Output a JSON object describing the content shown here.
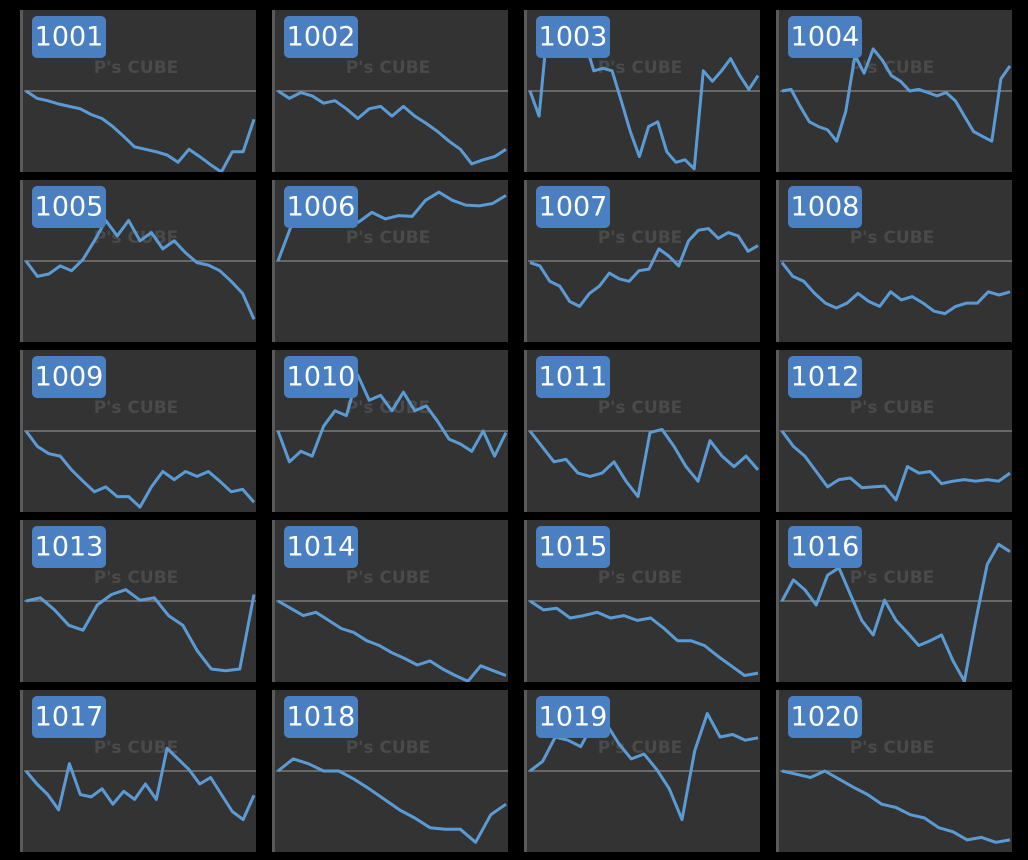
{
  "chart_data": [
    {
      "type": "line",
      "title": "1001",
      "watermark": "P's CUBE",
      "color": "#5b9bd5",
      "ylim": [
        -10,
        10
      ],
      "baseline": 0,
      "values": [
        0,
        -0.9,
        -1.2,
        -1.6,
        -1.9,
        -2.2,
        -2.9,
        -3.4,
        -4.4,
        -5.6,
        -6.9,
        -7.2,
        -7.5,
        -7.9,
        -8.8,
        -7.2,
        -8.1,
        -9.1,
        -10,
        -7.5,
        -7.5,
        -3.5
      ]
    },
    {
      "type": "line",
      "title": "1002",
      "watermark": "P's CUBE",
      "color": "#5b9bd5",
      "ylim": [
        -10,
        10
      ],
      "baseline": 0,
      "values": [
        0,
        -0.9,
        -0.2,
        -0.6,
        -1.5,
        -1.2,
        -2.2,
        -3.4,
        -2.2,
        -1.9,
        -3.1,
        -1.9,
        -3.1,
        -4,
        -5,
        -6.2,
        -7.2,
        -9,
        -8.5,
        -8.1,
        -7.2
      ]
    },
    {
      "type": "line",
      "title": "1003",
      "watermark": "P's CUBE",
      "color": "#5b9bd5",
      "ylim": [
        -10,
        10
      ],
      "baseline": 0,
      "values": [
        0,
        -3.1,
        8.8,
        5.6,
        6.2,
        5,
        6.2,
        2.5,
        2.8,
        2.5,
        -1.2,
        -5,
        -8.1,
        -4.4,
        -3.8,
        -7.5,
        -8.8,
        -8.5,
        -9.6,
        2.5,
        1.2,
        2.5,
        4,
        1.9,
        0.2,
        1.9
      ]
    },
    {
      "type": "line",
      "title": "1004",
      "watermark": "P's CUBE",
      "color": "#5b9bd5",
      "ylim": [
        -10,
        10
      ],
      "baseline": 0,
      "values": [
        0,
        0.2,
        -1.9,
        -3.8,
        -4.4,
        -4.8,
        -6.2,
        -2.5,
        4.4,
        2.2,
        5.2,
        3.8,
        1.9,
        1.2,
        0,
        0.2,
        -0.2,
        -0.6,
        -0.2,
        -1.2,
        -3.1,
        -5,
        -5.6,
        -6.2,
        1.5,
        3.1
      ]
    },
    {
      "type": "line",
      "title": "1005",
      "watermark": "P's CUBE",
      "color": "#5b9bd5",
      "ylim": [
        -10,
        10
      ],
      "baseline": 0,
      "values": [
        0,
        -1.9,
        -1.6,
        -0.6,
        -1.2,
        0.2,
        2.5,
        5,
        3.1,
        5,
        2.5,
        3.5,
        1.5,
        2.5,
        1,
        -0.2,
        -0.5,
        -1.2,
        -2.5,
        -4,
        -7.2
      ]
    },
    {
      "type": "line",
      "title": "1006",
      "watermark": "P's CUBE",
      "color": "#5b9bd5",
      "ylim": [
        -10,
        10
      ],
      "baseline": 0,
      "values": [
        0,
        4.4,
        6.2,
        5.2,
        4.8,
        5.6,
        4.8,
        6,
        5.2,
        5.6,
        5.5,
        7.5,
        8.5,
        7.5,
        6.9,
        6.8,
        7.1,
        8.1
      ]
    },
    {
      "type": "line",
      "title": "1007",
      "watermark": "P's CUBE",
      "color": "#5b9bd5",
      "ylim": [
        -10,
        10
      ],
      "baseline": 0,
      "values": [
        -0.2,
        -0.6,
        -2.5,
        -3.1,
        -5,
        -5.6,
        -4,
        -3.1,
        -1.5,
        -2.2,
        -2.5,
        -1.2,
        -1,
        1.5,
        0.6,
        -0.6,
        2.5,
        3.8,
        4,
        2.8,
        3.5,
        3.1,
        1.2,
        1.9
      ]
    },
    {
      "type": "line",
      "title": "1008",
      "watermark": "P's CUBE",
      "color": "#5b9bd5",
      "ylim": [
        -10,
        10
      ],
      "baseline": 0,
      "values": [
        -0.2,
        -1.9,
        -2.5,
        -4,
        -5.2,
        -5.8,
        -5.2,
        -4,
        -5,
        -5.6,
        -3.8,
        -4.8,
        -4.4,
        -5.2,
        -6.2,
        -6.5,
        -5.6,
        -5.2,
        -5.2,
        -3.8,
        -4.2,
        -3.8
      ]
    },
    {
      "type": "line",
      "title": "1009",
      "watermark": "P's CUBE",
      "color": "#5b9bd5",
      "ylim": [
        -10,
        10
      ],
      "baseline": 0,
      "values": [
        0,
        -1.9,
        -2.8,
        -3.1,
        -4.8,
        -6.2,
        -7.5,
        -6.9,
        -8.1,
        -8.1,
        -9.4,
        -6.9,
        -5,
        -6,
        -5,
        -5.6,
        -5,
        -6.2,
        -7.5,
        -7.2,
        -8.8
      ]
    },
    {
      "type": "line",
      "title": "1010",
      "watermark": "P's CUBE",
      "color": "#5b9bd5",
      "ylim": [
        -10,
        10
      ],
      "baseline": 0,
      "values": [
        0,
        -3.8,
        -2.5,
        -3.1,
        0.6,
        2.5,
        1.9,
        6.9,
        3.8,
        4.4,
        2.5,
        4.8,
        2.5,
        3.1,
        1.2,
        -1,
        -1.6,
        -2.5,
        0,
        -3.1,
        -0.2
      ]
    },
    {
      "type": "line",
      "title": "1011",
      "watermark": "P's CUBE",
      "color": "#5b9bd5",
      "ylim": [
        -10,
        10
      ],
      "baseline": 0,
      "values": [
        0,
        -1.9,
        -3.8,
        -3.5,
        -5.2,
        -5.6,
        -5.2,
        -3.8,
        -6.2,
        -8.1,
        -0.2,
        0.2,
        -1.9,
        -4.4,
        -6.2,
        -1.2,
        -3.1,
        -4.4,
        -3.1,
        -4.8
      ]
    },
    {
      "type": "line",
      "title": "1012",
      "watermark": "P's CUBE",
      "color": "#5b9bd5",
      "ylim": [
        -10,
        10
      ],
      "baseline": 0,
      "values": [
        0,
        -1.9,
        -3.1,
        -5,
        -6.9,
        -6,
        -5.8,
        -7,
        -6.9,
        -6.8,
        -8.5,
        -4.4,
        -5.2,
        -5,
        -6.5,
        -6.2,
        -6,
        -6.2,
        -6,
        -6.2,
        -5.2
      ]
    },
    {
      "type": "line",
      "title": "1013",
      "watermark": "P's CUBE",
      "color": "#5b9bd5",
      "ylim": [
        -10,
        10
      ],
      "baseline": 0,
      "values": [
        0,
        0.4,
        -1.1,
        -3,
        -3.6,
        -0.5,
        0.8,
        1.4,
        0.1,
        0.4,
        -1.8,
        -3,
        -6.1,
        -8.4,
        -8.6,
        -8.4,
        0.8
      ]
    },
    {
      "type": "line",
      "title": "1014",
      "watermark": "P's CUBE",
      "color": "#5b9bd5",
      "ylim": [
        -10,
        10
      ],
      "baseline": 0,
      "values": [
        0,
        -0.9,
        -1.8,
        -1.4,
        -2.4,
        -3.4,
        -3.9,
        -4.9,
        -5.5,
        -6.4,
        -7.1,
        -7.9,
        -7.4,
        -8.4,
        -9.2,
        -9.9,
        -8,
        -8.6,
        -9.2
      ]
    },
    {
      "type": "line",
      "title": "1015",
      "watermark": "P's CUBE",
      "color": "#5b9bd5",
      "ylim": [
        -10,
        10
      ],
      "baseline": 0,
      "values": [
        0,
        -1.1,
        -0.9,
        -2.1,
        -1.8,
        -1.4,
        -2.1,
        -1.8,
        -2.4,
        -2.1,
        -3.4,
        -4.9,
        -4.9,
        -5.5,
        -6.8,
        -8,
        -9.2,
        -8.9
      ]
    },
    {
      "type": "line",
      "title": "1016",
      "watermark": "P's CUBE",
      "color": "#5b9bd5",
      "ylim": [
        -10,
        10
      ],
      "baseline": 0,
      "values": [
        0,
        2.6,
        1.4,
        -0.5,
        3.2,
        4.1,
        0.8,
        -2.4,
        -4.2,
        0.1,
        -2.4,
        -3.9,
        -5.5,
        -4.9,
        -4.2,
        -7.4,
        -9.9,
        -2.4,
        4.5,
        7,
        6.1
      ]
    },
    {
      "type": "line",
      "title": "1017",
      "watermark": "P's CUBE",
      "color": "#5b9bd5",
      "ylim": [
        -10,
        10
      ],
      "baseline": 0,
      "values": [
        0,
        -1.6,
        -2.9,
        -4.8,
        0.9,
        -2.9,
        -3.2,
        -2.2,
        -4.1,
        -2.5,
        -3.5,
        -1.6,
        -3.5,
        2.8,
        1.5,
        0.2,
        -1.6,
        -0.8,
        -2.9,
        -5,
        -6,
        -3
      ]
    },
    {
      "type": "line",
      "title": "1018",
      "watermark": "P's CUBE",
      "color": "#5b9bd5",
      "ylim": [
        -10,
        10
      ],
      "baseline": 0,
      "values": [
        0,
        1.5,
        0.9,
        0,
        0,
        -1,
        -2.2,
        -3.5,
        -4.8,
        -5.8,
        -7,
        -7.2,
        -7.2,
        -8.8,
        -5.4,
        -4.1
      ]
    },
    {
      "type": "line",
      "title": "1019",
      "watermark": "P's CUBE",
      "color": "#5b9bd5",
      "ylim": [
        -10,
        10
      ],
      "baseline": 0,
      "values": [
        0,
        1.2,
        4.2,
        3.8,
        3,
        5.9,
        5.9,
        3.4,
        1.5,
        2.1,
        0.2,
        -2.2,
        -6,
        2.5,
        7.1,
        4.2,
        4.5,
        3.8,
        4.1
      ]
    },
    {
      "type": "line",
      "title": "1020",
      "watermark": "P's CUBE",
      "color": "#5b9bd5",
      "ylim": [
        -10,
        10
      ],
      "baseline": 0,
      "values": [
        0,
        -0.4,
        -0.8,
        0,
        -1,
        -2,
        -2.9,
        -4.1,
        -4.5,
        -5.4,
        -5.8,
        -7,
        -7.5,
        -8.5,
        -8.2,
        -8.8,
        -8.5
      ]
    }
  ]
}
